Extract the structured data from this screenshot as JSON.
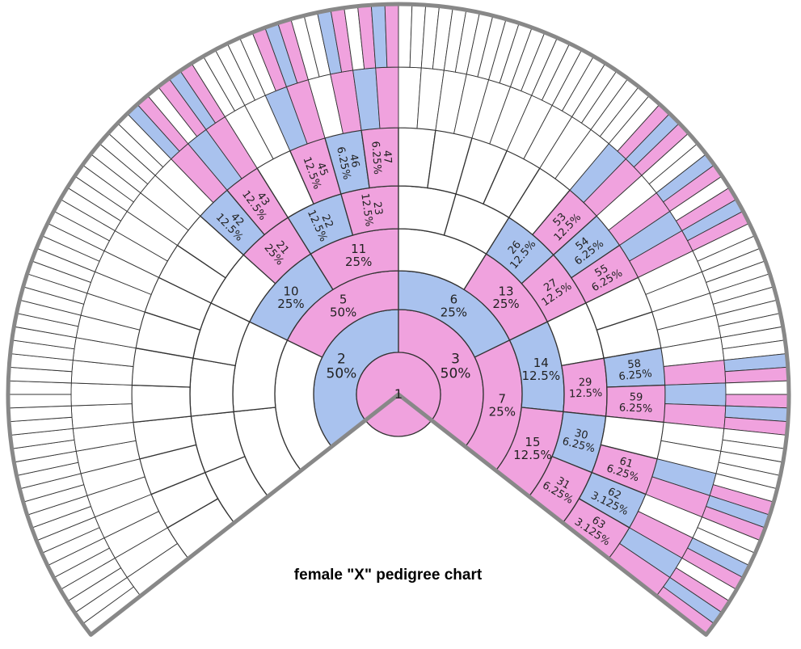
{
  "title": "female \"X\" pedigree chart",
  "nodes": [
    {
      "id": "1"
    },
    {
      "id": "2",
      "share": "50%"
    },
    {
      "id": "3",
      "share": "50%"
    },
    {
      "id": "5",
      "share": "50%"
    },
    {
      "id": "6",
      "share": "25%"
    },
    {
      "id": "7",
      "share": "25%"
    },
    {
      "id": "10",
      "share": "25%"
    },
    {
      "id": "11",
      "share": "25%"
    },
    {
      "id": "13",
      "share": "25%"
    },
    {
      "id": "14",
      "share": "12.5%"
    },
    {
      "id": "15",
      "share": "12.5%"
    },
    {
      "id": "21",
      "share": "25%"
    },
    {
      "id": "22",
      "share": "12.5%"
    },
    {
      "id": "23",
      "share": "12.5%"
    },
    {
      "id": "26",
      "share": "12.5%"
    },
    {
      "id": "27",
      "share": "12.5%"
    },
    {
      "id": "29",
      "share": "12.5%"
    },
    {
      "id": "30",
      "share": "6.25%"
    },
    {
      "id": "31",
      "share": "6.25%"
    },
    {
      "id": "42",
      "share": "12.5%"
    },
    {
      "id": "43",
      "share": "12.5%"
    },
    {
      "id": "45",
      "share": "12.5%"
    },
    {
      "id": "46",
      "share": "6.25%"
    },
    {
      "id": "47",
      "share": "6.25%"
    },
    {
      "id": "53",
      "share": "12.5%"
    },
    {
      "id": "54",
      "share": "6.25%"
    },
    {
      "id": "55",
      "share": "6.25%"
    },
    {
      "id": "58",
      "share": "6.25%"
    },
    {
      "id": "59",
      "share": "6.25%"
    },
    {
      "id": "61",
      "share": "6.25%"
    },
    {
      "id": "62",
      "share": "3.125%"
    },
    {
      "id": "63",
      "share": "3.125%"
    }
  ]
}
